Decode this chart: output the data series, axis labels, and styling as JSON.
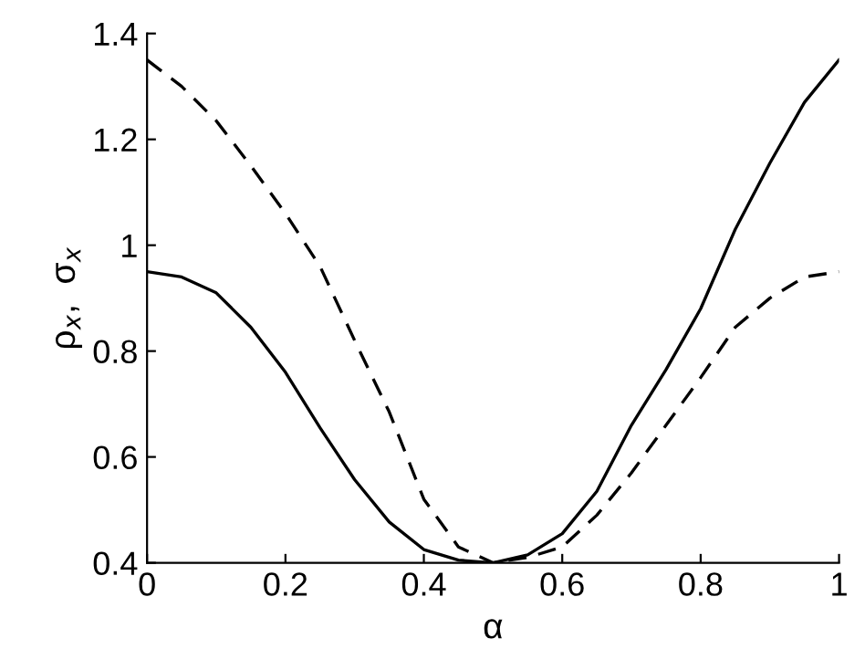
{
  "chart_data": {
    "type": "line",
    "xlabel": "α",
    "ylabel": "ρ$_{x}$,  σ$_{x}$",
    "xlim": [
      0,
      1
    ],
    "ylim": [
      0.4,
      1.4
    ],
    "xticks": [
      0,
      0.2,
      0.4,
      0.6,
      0.8,
      1
    ],
    "yticks": [
      0.4,
      0.6,
      0.8,
      1,
      1.2,
      1.4
    ],
    "grid": false,
    "legend": false,
    "x": [
      0,
      0.05,
      0.1,
      0.15,
      0.2,
      0.25,
      0.3,
      0.35,
      0.4,
      0.45,
      0.5,
      0.55,
      0.6,
      0.65,
      0.7,
      0.75,
      0.8,
      0.85,
      0.9,
      0.95,
      1
    ],
    "series": [
      {
        "color": "#000000",
        "line_style": "solid",
        "values": [
          0.95,
          0.94,
          0.91,
          0.845,
          0.76,
          0.655,
          0.557,
          0.477,
          0.425,
          0.405,
          0.4,
          0.415,
          0.455,
          0.535,
          0.66,
          0.765,
          0.88,
          1.03,
          1.155,
          1.27,
          1.35
        ]
      },
      {
        "color": "#000000",
        "line_style": "dashed",
        "values": [
          1.35,
          1.3,
          1.235,
          1.15,
          1.06,
          0.96,
          0.82,
          0.685,
          0.52,
          0.43,
          0.4,
          0.41,
          0.43,
          0.49,
          0.57,
          0.66,
          0.75,
          0.845,
          0.9,
          0.94,
          0.95
        ]
      }
    ]
  }
}
